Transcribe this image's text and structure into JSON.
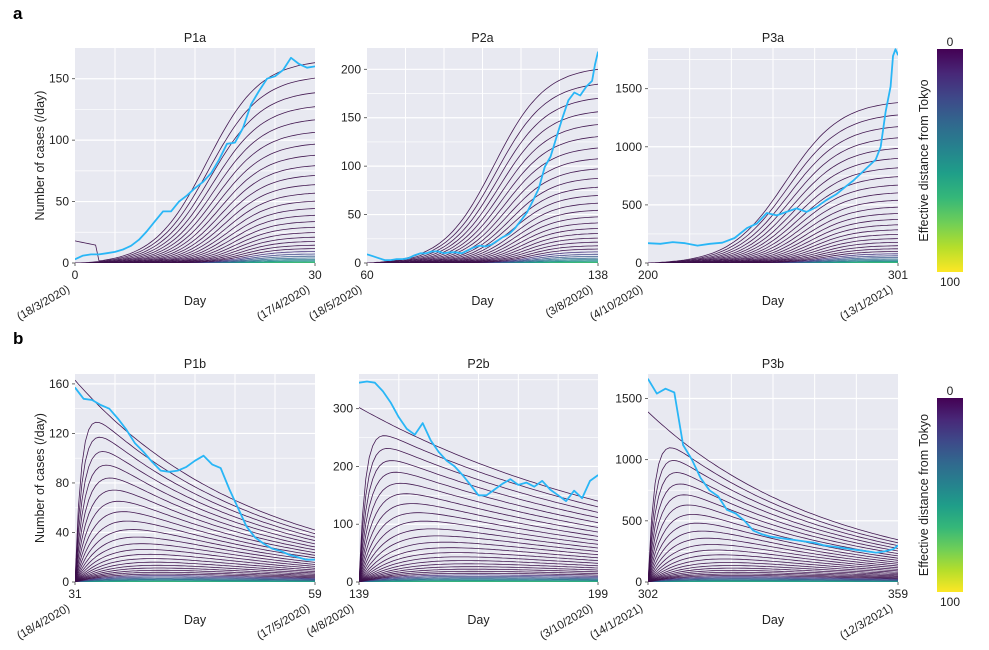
{
  "figure": {
    "panel_labels": [
      "a",
      "b"
    ],
    "colorbar": {
      "label": "Effective distance from Tokyo",
      "tick_top": "0",
      "tick_bottom": "100",
      "colormap": "viridis",
      "stops": [
        "#440154",
        "#482878",
        "#3e4989",
        "#31688e",
        "#26828e",
        "#1f9e89",
        "#35b779",
        "#6ece58",
        "#b5de2b",
        "#fde725"
      ]
    },
    "style": {
      "plot_bg": "#e8e9f1",
      "grid": "#ffffff",
      "observed_color": "#29b6f6",
      "dark_curve": "#3b0f4a"
    }
  },
  "chart_data": [
    {
      "id": "P1a",
      "type": "line",
      "title": "P1a",
      "phase": "growth",
      "xlabel": "Day",
      "ylabel": "Number of cases (/day)",
      "xlim": [
        0,
        30
      ],
      "ylim": [
        0,
        175
      ],
      "xticks": [
        {
          "value": 0,
          "label": "0",
          "date": "(18/3/2020)"
        },
        {
          "value": 30,
          "label": "30",
          "date": "(17/4/2020)"
        }
      ],
      "yticks": [
        0,
        50,
        100,
        150
      ],
      "model_peak": 163,
      "observed": {
        "name": "observed",
        "x": [
          0,
          1,
          2,
          3,
          4,
          5,
          6,
          7,
          8,
          9,
          10,
          11,
          12,
          13,
          14,
          15,
          16,
          17,
          18,
          19,
          20,
          21,
          22,
          23,
          24,
          25,
          26,
          27,
          28,
          29,
          30
        ],
        "y": [
          3,
          6,
          7,
          7,
          8,
          9,
          11,
          14,
          19,
          26,
          34,
          42,
          42,
          50,
          55,
          61,
          66,
          73,
          84,
          97,
          98,
          110,
          129,
          140,
          150,
          152,
          157,
          167,
          162,
          159,
          160
        ]
      }
    },
    {
      "id": "P2a",
      "type": "line",
      "title": "P2a",
      "phase": "growth",
      "xlabel": "Day",
      "ylabel": "",
      "xlim": [
        60,
        138
      ],
      "ylim": [
        0,
        222
      ],
      "xticks": [
        {
          "value": 60,
          "label": "60",
          "date": "(18/5/2020)"
        },
        {
          "value": 138,
          "label": "138",
          "date": "(3/8/2020)"
        }
      ],
      "yticks": [
        0,
        50,
        100,
        150,
        200
      ],
      "model_peak": 200,
      "observed": {
        "name": "observed",
        "x": [
          60,
          62,
          64,
          66,
          68,
          70,
          72,
          74,
          76,
          78,
          80,
          82,
          84,
          86,
          88,
          90,
          92,
          94,
          96,
          98,
          100,
          102,
          104,
          106,
          108,
          110,
          112,
          114,
          116,
          118,
          120,
          122,
          124,
          126,
          128,
          130,
          132,
          134,
          136,
          137,
          138
        ],
        "y": [
          9,
          7,
          5,
          3,
          3,
          4,
          4,
          5,
          8,
          10,
          10,
          12,
          12,
          10,
          11,
          11,
          10,
          13,
          16,
          18,
          17,
          19,
          23,
          27,
          30,
          36,
          44,
          52,
          64,
          77,
          99,
          110,
          130,
          150,
          168,
          176,
          173,
          182,
          188,
          205,
          218
        ]
      }
    },
    {
      "id": "P3a",
      "type": "line",
      "title": "P3a",
      "phase": "growth",
      "xlabel": "Day",
      "ylabel": "",
      "xlim": [
        200,
        301
      ],
      "ylim": [
        0,
        1850
      ],
      "xticks": [
        {
          "value": 200,
          "label": "200",
          "date": "(4/10/2020)"
        },
        {
          "value": 301,
          "label": "301",
          "date": "(13/1/2021)"
        }
      ],
      "yticks": [
        0,
        500,
        1000,
        1500
      ],
      "model_peak": 1380,
      "observed": {
        "name": "observed",
        "x": [
          200,
          205,
          210,
          215,
          220,
          225,
          230,
          235,
          240,
          244,
          248,
          252,
          256,
          260,
          264,
          268,
          272,
          276,
          280,
          283,
          286,
          289,
          292,
          294,
          296,
          298,
          299,
          300,
          301
        ],
        "y": [
          170,
          165,
          180,
          170,
          150,
          165,
          175,
          215,
          300,
          340,
          430,
          410,
          440,
          470,
          440,
          480,
          540,
          590,
          660,
          710,
          770,
          830,
          890,
          1000,
          1300,
          1520,
          1780,
          1840,
          1790
        ]
      }
    },
    {
      "id": "P1b",
      "type": "line",
      "title": "P1b",
      "phase": "decline",
      "xlabel": "Day",
      "ylabel": "Number of cases (/day)",
      "xlim": [
        31,
        59
      ],
      "ylim": [
        0,
        168
      ],
      "xticks": [
        {
          "value": 31,
          "label": "31",
          "date": "(18/4/2020)"
        },
        {
          "value": 59,
          "label": "59",
          "date": "(17/5/2020)"
        }
      ],
      "yticks": [
        0,
        40,
        80,
        120,
        160
      ],
      "model_start": 163,
      "model_end": 42,
      "observed": {
        "name": "observed",
        "x": [
          31,
          32,
          33,
          34,
          35,
          36,
          37,
          38,
          39,
          40,
          41,
          42,
          43,
          44,
          45,
          46,
          47,
          48,
          49,
          50,
          51,
          52,
          53,
          54,
          55,
          56,
          57,
          58,
          59
        ],
        "y": [
          157,
          148,
          147,
          143,
          140,
          132,
          123,
          112,
          105,
          97,
          90,
          89,
          90,
          93,
          98,
          102,
          95,
          92,
          75,
          60,
          45,
          36,
          31,
          27,
          25,
          22,
          20,
          18,
          18
        ]
      }
    },
    {
      "id": "P2b",
      "type": "line",
      "title": "P2b",
      "phase": "decline",
      "xlabel": "Day",
      "ylabel": "",
      "xlim": [
        139,
        199
      ],
      "ylim": [
        0,
        360
      ],
      "xticks": [
        {
          "value": 139,
          "label": "139",
          "date": "(4/8/2020)"
        },
        {
          "value": 199,
          "label": "199",
          "date": "(3/10/2020)"
        }
      ],
      "yticks": [
        0,
        100,
        200,
        300
      ],
      "model_start": 302,
      "model_end": 140,
      "observed": {
        "name": "observed",
        "x": [
          139,
          141,
          143,
          145,
          147,
          149,
          151,
          153,
          155,
          157,
          159,
          161,
          163,
          165,
          167,
          169,
          171,
          173,
          175,
          177,
          179,
          181,
          183,
          185,
          187,
          189,
          191,
          193,
          195,
          197,
          199
        ],
        "y": [
          345,
          347,
          345,
          330,
          310,
          285,
          265,
          255,
          275,
          245,
          225,
          210,
          200,
          185,
          168,
          150,
          150,
          160,
          170,
          178,
          168,
          172,
          165,
          175,
          160,
          150,
          140,
          158,
          145,
          175,
          185
        ]
      }
    },
    {
      "id": "P3b",
      "type": "line",
      "title": "P3b",
      "phase": "decline",
      "xlabel": "Day",
      "ylabel": "",
      "xlim": [
        302,
        359
      ],
      "ylim": [
        0,
        1700
      ],
      "xticks": [
        {
          "value": 302,
          "label": "302",
          "date": "(14/1/2021)"
        },
        {
          "value": 359,
          "label": "359",
          "date": "(12/3/2021)"
        }
      ],
      "yticks": [
        0,
        500,
        1000,
        1500
      ],
      "model_start": 1390,
      "model_end": 345,
      "observed": {
        "name": "observed",
        "x": [
          302,
          304,
          306,
          308,
          310,
          312,
          314,
          316,
          318,
          320,
          322,
          324,
          326,
          328,
          330,
          332,
          334,
          336,
          338,
          340,
          342,
          344,
          346,
          348,
          350,
          352,
          354,
          356,
          358,
          359
        ],
        "y": [
          1660,
          1540,
          1580,
          1550,
          1120,
          1000,
          850,
          750,
          700,
          590,
          560,
          500,
          420,
          390,
          370,
          360,
          350,
          340,
          330,
          320,
          300,
          290,
          280,
          270,
          260,
          250,
          240,
          250,
          270,
          300
        ]
      }
    }
  ]
}
